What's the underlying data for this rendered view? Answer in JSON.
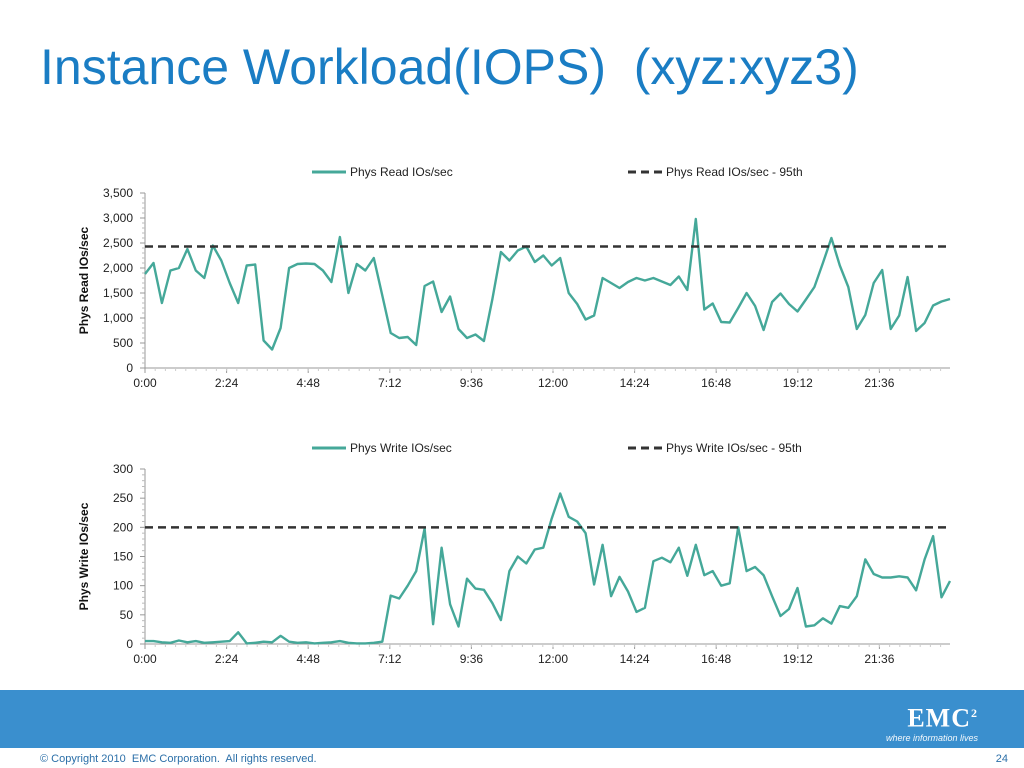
{
  "title": "Instance Workload(IOPS)  (xyz:xyz3)",
  "chart_data": [
    {
      "type": "line",
      "title": "",
      "ylabel": "Phys Read IOs/sec",
      "xlabel": "",
      "ylim": [
        0,
        3500
      ],
      "yticks": [
        "0",
        "500",
        "1,000",
        "1,500",
        "2,000",
        "2,500",
        "3,000",
        "3,500"
      ],
      "xticks": [
        "0:00",
        "2:24",
        "4:48",
        "7:12",
        "9:36",
        "12:00",
        "14:24",
        "16:48",
        "19:12",
        "21:36"
      ],
      "legend_position": "top",
      "series": [
        {
          "name": "Phys Read IOs/sec",
          "color": "#45a899",
          "style": "solid",
          "values": [
            1880,
            2100,
            1300,
            1950,
            2000,
            2380,
            1950,
            1800,
            2450,
            2150,
            1700,
            1300,
            2050,
            2070,
            550,
            370,
            800,
            2000,
            2080,
            2090,
            2080,
            1950,
            1720,
            2620,
            1500,
            2080,
            1950,
            2200,
            1450,
            700,
            600,
            620,
            460,
            1640,
            1730,
            1120,
            1430,
            780,
            600,
            670,
            540,
            1380,
            2320,
            2150,
            2350,
            2430,
            2120,
            2250,
            2050,
            2200,
            1500,
            1280,
            970,
            1050,
            1800,
            1700,
            1600,
            1720,
            1800,
            1750,
            1800,
            1730,
            1660,
            1830,
            1560,
            2980,
            1170,
            1290,
            920,
            910,
            1200,
            1500,
            1240,
            760,
            1320,
            1490,
            1280,
            1130,
            1370,
            1620,
            2100,
            2600,
            2050,
            1620,
            780,
            1060,
            1700,
            1960,
            780,
            1050,
            1820,
            740,
            900,
            1250,
            1330,
            1380
          ]
        },
        {
          "name": "Phys Read IOs/sec - 95th",
          "color": "#333333",
          "style": "dashed",
          "value": 2430
        }
      ]
    },
    {
      "type": "line",
      "title": "",
      "ylabel": "Phys Write IOs/sec",
      "xlabel": "",
      "ylim": [
        0,
        300
      ],
      "yticks": [
        "0",
        "50",
        "100",
        "150",
        "200",
        "250",
        "300"
      ],
      "xticks": [
        "0:00",
        "2:24",
        "4:48",
        "7:12",
        "9:36",
        "12:00",
        "14:24",
        "16:48",
        "19:12",
        "21:36"
      ],
      "legend_position": "top",
      "series": [
        {
          "name": "Phys Write IOs/sec",
          "color": "#45a899",
          "style": "solid",
          "values": [
            5,
            5,
            3,
            2,
            6,
            3,
            5,
            2,
            3,
            4,
            5,
            20,
            1,
            2,
            4,
            3,
            14,
            4,
            2,
            3,
            1,
            2,
            3,
            5,
            2,
            1,
            1,
            2,
            4,
            83,
            78,
            100,
            125,
            198,
            34,
            165,
            68,
            30,
            112,
            95,
            93,
            70,
            41,
            125,
            150,
            138,
            162,
            165,
            215,
            258,
            218,
            210,
            190,
            102,
            170,
            82,
            115,
            90,
            55,
            62,
            142,
            148,
            140,
            165,
            117,
            170,
            118,
            125,
            100,
            104,
            200,
            125,
            132,
            118,
            82,
            48,
            60,
            96,
            30,
            32,
            44,
            35,
            65,
            62,
            82,
            145,
            120,
            114,
            114,
            116,
            114,
            92,
            145,
            185,
            80,
            108
          ]
        },
        {
          "name": "Phys Write IOs/sec - 95th",
          "color": "#333333",
          "style": "dashed",
          "value": 200
        }
      ]
    }
  ],
  "brand": {
    "logo_text": "EMC",
    "logo_superscript": "2",
    "tagline": "where information lives",
    "band_color": "#3a8fce",
    "title_color": "#1a7dc4"
  },
  "footer": {
    "copyright": "© Copyright 2010  EMC Corporation.  All rights reserved.",
    "page_number": "24"
  }
}
